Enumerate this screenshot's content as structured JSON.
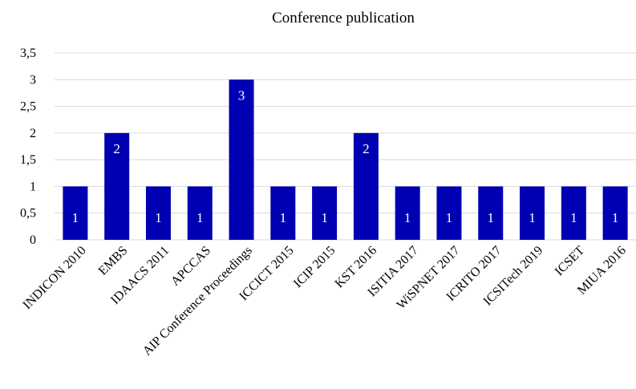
{
  "chart_data": {
    "type": "bar",
    "title": "Conference publication",
    "xlabel": "",
    "ylabel": "",
    "categories": [
      "INDICON 2010",
      "EMBS",
      "IDAACS 2011",
      "APCCAS",
      "AIP Conference Proceedings",
      "ICCICT 2015",
      "ICIP 2015",
      "KST 2016",
      "ISITIA 2017",
      "WiSPNET 2017",
      "ICRITO 2017",
      "ICSITech 2019",
      "ICSET",
      "MIUA 2016"
    ],
    "values": [
      1,
      2,
      1,
      1,
      3,
      1,
      1,
      2,
      1,
      1,
      1,
      1,
      1,
      1
    ],
    "data_labels": [
      "1",
      "2",
      "1",
      "1",
      "3",
      "1",
      "1",
      "2",
      "1",
      "1",
      "1",
      "1",
      "1",
      "1"
    ],
    "ylim": [
      0,
      3.5
    ],
    "yticks": [
      0,
      0.5,
      1,
      1.5,
      2,
      2.5,
      3,
      3.5
    ],
    "ytick_labels": [
      "0",
      "0,5",
      "1",
      "1,5",
      "2",
      "2,5",
      "3",
      "3,5"
    ],
    "grid": true,
    "legend": "none",
    "bar_color": "#0000b3",
    "label_color": "#ffffff"
  }
}
